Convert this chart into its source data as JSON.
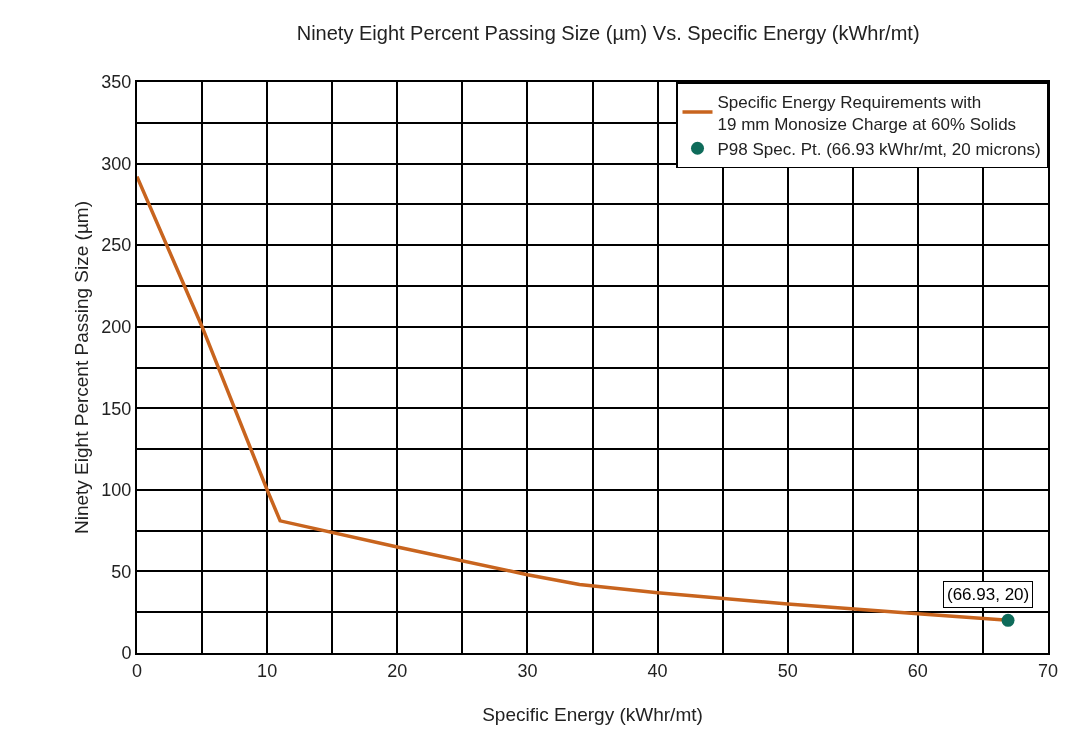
{
  "chart_data": {
    "type": "line",
    "title": "Ninety Eight Percent Passing Size (µm) Vs. Specific Energy (kWhr/mt)",
    "xlabel": "Specific Energy (kWhr/mt)",
    "ylabel": "Ninety Eight Percent Passing Size (µm)",
    "series": [
      {
        "name": "Specific Energy Requirements with\n19 mm Monosize Charge at 60% Solids",
        "color": "#c8641e",
        "marker": "none",
        "x": [
          0,
          5,
          10,
          11,
          20,
          30,
          34,
          40,
          50,
          60,
          66.93
        ],
        "values": [
          292,
          200,
          100,
          81,
          65,
          48,
          42,
          37,
          30,
          24,
          20
        ]
      },
      {
        "name": "P98 Spec. Pt. (66.93 kWhr/mt, 20 microns)",
        "type": "scatter",
        "color": "#0e6b5a",
        "marker": "circle",
        "x": [
          66.93
        ],
        "values": [
          20
        ]
      }
    ],
    "annotations": [
      {
        "text": "(66.93, 20)",
        "x": 66.93,
        "y": 20
      }
    ],
    "xlim": [
      0,
      70
    ],
    "ylim": [
      0,
      350
    ],
    "xticks": [
      0,
      {
        "value": 5,
        "label": null
      },
      10,
      {
        "value": 15,
        "label": null
      },
      20,
      {
        "value": 25,
        "label": null
      },
      30,
      {
        "value": 35,
        "label": null
      },
      40,
      {
        "value": 45,
        "label": null
      },
      50,
      {
        "value": 55,
        "label": null
      },
      60,
      {
        "value": 65,
        "label": null
      },
      70
    ],
    "yticks": [
      0,
      {
        "value": 25,
        "label": null
      },
      50,
      {
        "value": 75,
        "label": null
      },
      100,
      {
        "value": 125,
        "label": null
      },
      150,
      {
        "value": 175,
        "label": null
      },
      200,
      {
        "value": 225,
        "label": null
      },
      250,
      {
        "value": 275,
        "label": null
      },
      300,
      {
        "value": 325,
        "label": null
      },
      350
    ],
    "grid": true,
    "legend": "top right",
    "line_style": "solid"
  }
}
